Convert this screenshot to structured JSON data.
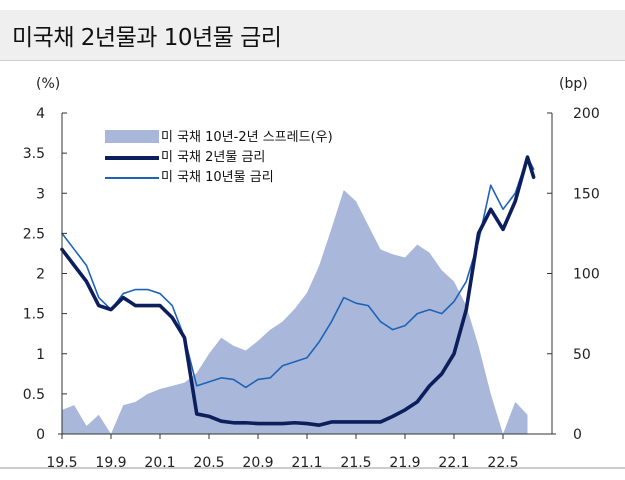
{
  "header": {
    "title": "미국채 2년물과 10년물 금리"
  },
  "chart_data": {
    "type": "line",
    "title": "미국채 2년물과 10년물 금리",
    "x_ticks": [
      "19.5",
      "19.9",
      "20.1",
      "20.5",
      "20.9",
      "21.1",
      "21.5",
      "21.9",
      "22.1",
      "22.5"
    ],
    "x_tick_months": [
      0,
      4,
      8,
      12,
      16,
      20,
      24,
      28,
      32,
      36
    ],
    "x_range": [
      0,
      40
    ],
    "y_left": {
      "unit": "(%)",
      "range": [
        0,
        4
      ],
      "ticks": [
        "0",
        "0.5",
        "1",
        "1.5",
        "2",
        "2.5",
        "3",
        "3.5",
        "4"
      ]
    },
    "y_right": {
      "unit": "(bp)",
      "range": [
        0,
        200
      ],
      "ticks": [
        "0",
        "50",
        "100",
        "150",
        "200"
      ]
    },
    "legend_position": "top-left",
    "colors": {
      "spread": "#a9b8da",
      "y2": "#0d1e5c",
      "y10": "#1f63b8",
      "axis": "#333333"
    },
    "series": [
      {
        "name": "미 국채 10년-2년 스프레드(우)",
        "kind": "area",
        "axis": "right",
        "x": [
          0,
          1,
          2,
          3,
          4,
          5,
          6,
          7,
          8,
          9,
          10,
          11,
          12,
          13,
          14,
          15,
          16,
          17,
          18,
          19,
          20,
          21,
          22,
          23,
          24,
          25,
          26,
          27,
          28,
          29,
          30,
          31,
          32,
          33,
          34,
          35,
          36,
          37,
          38
        ],
        "values": [
          15,
          18,
          5,
          12,
          0,
          18,
          20,
          25,
          28,
          30,
          32,
          38,
          50,
          60,
          55,
          52,
          58,
          65,
          70,
          78,
          88,
          105,
          128,
          152,
          145,
          130,
          115,
          112,
          110,
          118,
          113,
          102,
          95,
          80,
          55,
          25,
          0,
          20,
          12
        ],
        "values_label": "bp"
      },
      {
        "name": "미 국채 2년물 금리",
        "kind": "line",
        "axis": "left",
        "x": [
          0,
          1,
          2,
          3,
          4,
          5,
          6,
          7,
          8,
          9,
          10,
          11,
          12,
          13,
          14,
          15,
          16,
          17,
          18,
          19,
          20,
          21,
          22,
          23,
          24,
          25,
          26,
          27,
          28,
          29,
          30,
          31,
          32,
          33,
          34,
          35,
          36,
          37,
          38,
          38.5
        ],
        "values": [
          2.3,
          2.1,
          1.9,
          1.6,
          1.55,
          1.7,
          1.6,
          1.6,
          1.6,
          1.45,
          1.2,
          0.25,
          0.22,
          0.16,
          0.14,
          0.14,
          0.13,
          0.13,
          0.13,
          0.14,
          0.13,
          0.11,
          0.15,
          0.15,
          0.15,
          0.15,
          0.15,
          0.22,
          0.3,
          0.4,
          0.6,
          0.75,
          1.0,
          1.55,
          2.5,
          2.8,
          2.55,
          2.9,
          3.45,
          3.2
        ],
        "values_label": "%"
      },
      {
        "name": "미 국채 10년물 금리",
        "kind": "line",
        "axis": "left",
        "x": [
          0,
          1,
          2,
          3,
          4,
          5,
          6,
          7,
          8,
          9,
          10,
          11,
          12,
          13,
          14,
          15,
          16,
          17,
          18,
          19,
          20,
          21,
          22,
          23,
          24,
          25,
          26,
          27,
          28,
          29,
          30,
          31,
          32,
          33,
          34,
          35,
          36,
          37,
          38,
          38.5
        ],
        "values": [
          2.5,
          2.3,
          2.1,
          1.7,
          1.55,
          1.75,
          1.8,
          1.8,
          1.75,
          1.6,
          1.2,
          0.6,
          0.65,
          0.7,
          0.68,
          0.58,
          0.68,
          0.7,
          0.85,
          0.9,
          0.95,
          1.15,
          1.4,
          1.7,
          1.63,
          1.6,
          1.4,
          1.3,
          1.35,
          1.5,
          1.55,
          1.5,
          1.65,
          1.9,
          2.4,
          3.1,
          2.8,
          3.0,
          3.45,
          3.3
        ],
        "values_label": "%"
      }
    ]
  }
}
